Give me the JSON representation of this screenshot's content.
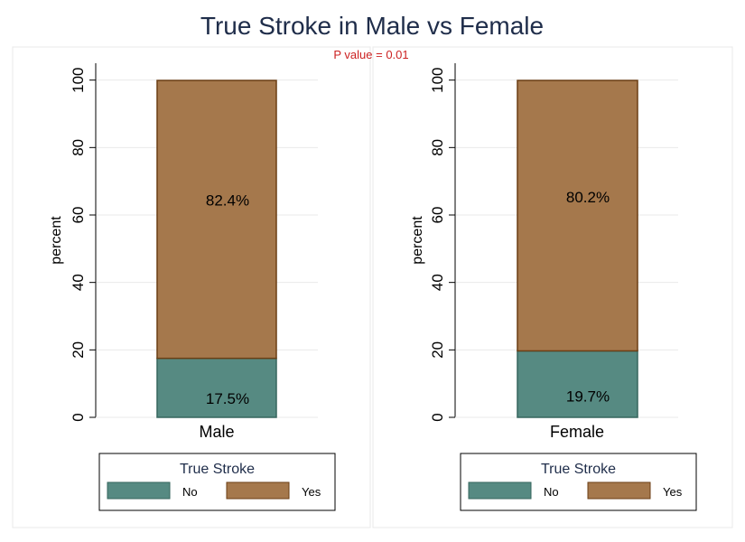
{
  "chart_data": {
    "type": "bar",
    "title": "True Stroke in Male vs Female",
    "note": "P value = 0.01",
    "ylabel": "percent",
    "ylim": [
      0,
      105
    ],
    "yticks": [
      0,
      20,
      40,
      60,
      80,
      100
    ],
    "grid": true,
    "stacked": true,
    "panels": [
      {
        "category": "Male",
        "segments": [
          {
            "series": "No",
            "value": 17.5,
            "label": "17.5%"
          },
          {
            "series": "Yes",
            "value": 82.4,
            "label": "82.4%"
          }
        ]
      },
      {
        "category": "Female",
        "segments": [
          {
            "series": "No",
            "value": 19.7,
            "label": "19.7%"
          },
          {
            "series": "Yes",
            "value": 80.2,
            "label": "80.2%"
          }
        ]
      }
    ],
    "legend": {
      "title": "True Stroke",
      "position": "bottom",
      "entries": [
        {
          "name": "No",
          "color": "#568a82"
        },
        {
          "name": "Yes",
          "color": "#a5784c"
        }
      ]
    }
  },
  "colors": {
    "title": "#1f2d4a",
    "note": "#cc2222",
    "no_fill": "#568a82",
    "no_stroke": "#36665e",
    "yes_fill": "#a5784c",
    "yes_stroke": "#6b3e14",
    "grid": "#eaeaea",
    "frame": "#e8e8e8"
  }
}
